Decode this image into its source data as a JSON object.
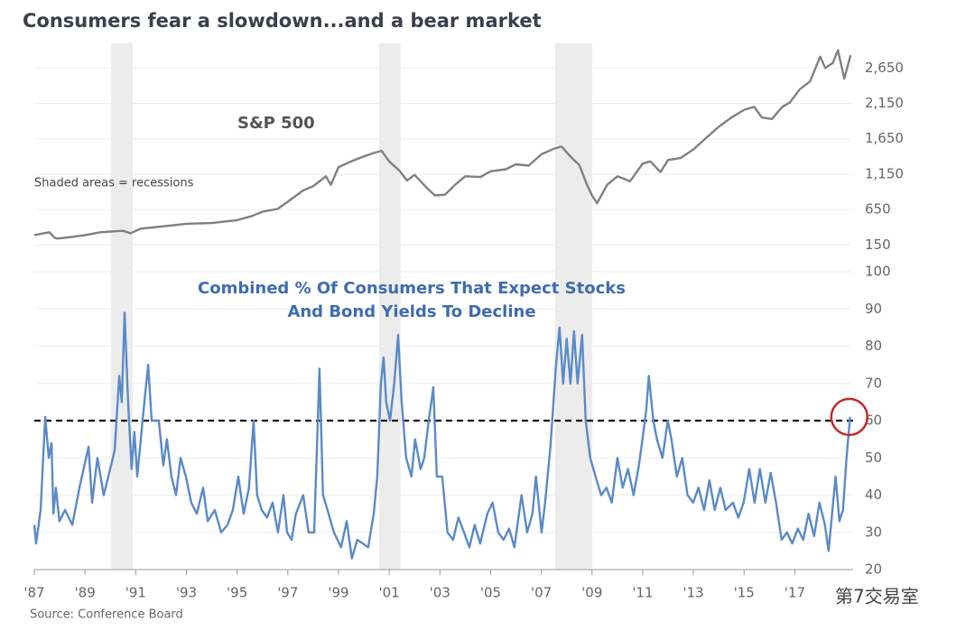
{
  "chart_data": [
    {
      "type": "line",
      "title": "Consumers fear a slowdown...and a bear market",
      "note": "Shaded areas = recessions",
      "xlim": [
        1987,
        2019.3
      ],
      "ylim": [
        -100,
        3100
      ],
      "yticks": [
        150,
        650,
        {
          "value": 1150,
          "label": "1,150"
        },
        {
          "value": 1650,
          "label": "1,650"
        },
        {
          "value": 2150,
          "label": "2,150"
        },
        {
          "value": 2650,
          "label": "2,650"
        }
      ],
      "grid": true,
      "series": [
        {
          "name": "S&P 500",
          "color": "#808080",
          "x": [
            1987.0,
            1987.3,
            1987.6,
            1987.8,
            1987.9,
            1988.5,
            1989.0,
            1989.6,
            1990.0,
            1990.5,
            1990.8,
            1991.2,
            1992.0,
            1993.0,
            1994.0,
            1995.0,
            1995.6,
            1996.0,
            1996.6,
            1997.0,
            1997.6,
            1998.0,
            1998.5,
            1998.7,
            1999.0,
            1999.5,
            2000.0,
            2000.4,
            2000.7,
            2001.0,
            2001.4,
            2001.7,
            2002.0,
            2002.5,
            2002.8,
            2003.2,
            2003.6,
            2004.0,
            2004.6,
            2005.0,
            2005.6,
            2006.0,
            2006.5,
            2007.0,
            2007.5,
            2007.8,
            2008.2,
            2008.5,
            2008.8,
            2009.0,
            2009.2,
            2009.6,
            2010.0,
            2010.5,
            2011.0,
            2011.3,
            2011.7,
            2012.0,
            2012.5,
            2013.0,
            2013.5,
            2014.0,
            2014.5,
            2015.0,
            2015.4,
            2015.7,
            2016.1,
            2016.5,
            2016.8,
            2017.2,
            2017.6,
            2018.0,
            2018.2,
            2018.5,
            2018.7,
            2018.95,
            2019.2
          ],
          "values": [
            290,
            310,
            330,
            250,
            240,
            265,
            290,
            330,
            340,
            350,
            315,
            380,
            410,
            450,
            460,
            500,
            560,
            620,
            660,
            760,
            920,
            980,
            1120,
            1000,
            1250,
            1330,
            1400,
            1450,
            1480,
            1330,
            1200,
            1060,
            1140,
            950,
            850,
            860,
            1000,
            1120,
            1110,
            1190,
            1220,
            1290,
            1270,
            1430,
            1510,
            1540,
            1380,
            1280,
            1000,
            850,
            740,
            1000,
            1120,
            1050,
            1300,
            1330,
            1180,
            1350,
            1380,
            1500,
            1660,
            1820,
            1950,
            2060,
            2100,
            1950,
            1930,
            2100,
            2160,
            2350,
            2460,
            2810,
            2650,
            2720,
            2900,
            2500,
            2830
          ]
        }
      ]
    },
    {
      "type": "line",
      "title": [
        "Combined % Of Consumers That Expect Stocks",
        "And Bond Yields To Decline"
      ],
      "xlim": [
        1987,
        2019.3
      ],
      "xticks": [
        {
          "value": 1987,
          "label": "'87"
        },
        {
          "value": 1989,
          "label": "'89"
        },
        {
          "value": 1991,
          "label": "'91"
        },
        {
          "value": 1993,
          "label": "'93"
        },
        {
          "value": 1995,
          "label": "'95"
        },
        {
          "value": 1997,
          "label": "'97"
        },
        {
          "value": 1999,
          "label": "'99"
        },
        {
          "value": 2001,
          "label": "'01"
        },
        {
          "value": 2003,
          "label": "'03"
        },
        {
          "value": 2005,
          "label": "'05"
        },
        {
          "value": 2007,
          "label": "'07"
        },
        {
          "value": 2009,
          "label": "'09"
        },
        {
          "value": 2011,
          "label": "'11"
        },
        {
          "value": 2013,
          "label": "'13"
        },
        {
          "value": 2015,
          "label": "'15"
        },
        {
          "value": 2017,
          "label": "'17"
        }
      ],
      "ylim": [
        20,
        100
      ],
      "yticks": [
        20,
        30,
        40,
        50,
        60,
        70,
        80,
        90,
        100
      ],
      "grid": true,
      "threshold": 60,
      "circle": {
        "x": 2019.15,
        "y": 61
      },
      "recessions": [
        [
          1990.03,
          1990.88
        ],
        [
          2000.6,
          2001.45
        ],
        [
          2007.54,
          2009.0
        ]
      ],
      "series": [
        {
          "color": "#5b8ac6",
          "x": [
            1987.0,
            1987.07,
            1987.25,
            1987.43,
            1987.57,
            1987.68,
            1987.75,
            1987.85,
            1987.99,
            1988.21,
            1988.5,
            1988.78,
            1989.14,
            1989.28,
            1989.49,
            1989.74,
            1989.92,
            1990.17,
            1990.35,
            1990.45,
            1990.56,
            1990.7,
            1990.84,
            1990.95,
            1991.06,
            1991.27,
            1991.49,
            1991.63,
            1991.91,
            1992.09,
            1992.23,
            1992.41,
            1992.59,
            1992.77,
            1992.98,
            1993.19,
            1993.41,
            1993.66,
            1993.84,
            1994.12,
            1994.37,
            1994.62,
            1994.83,
            1995.05,
            1995.26,
            1995.47,
            1995.65,
            1995.79,
            1995.97,
            1996.18,
            1996.4,
            1996.61,
            1996.83,
            1996.97,
            1997.15,
            1997.32,
            1997.61,
            1997.82,
            1998.04,
            1998.25,
            1998.39,
            1998.61,
            1998.82,
            1999.1,
            1999.32,
            1999.53,
            1999.74,
            1999.96,
            2000.17,
            2000.39,
            2000.53,
            2000.67,
            2000.78,
            2000.88,
            2001.03,
            2001.2,
            2001.35,
            2001.49,
            2001.67,
            2001.88,
            2002.02,
            2002.24,
            2002.38,
            2002.56,
            2002.74,
            2002.88,
            2003.09,
            2003.3,
            2003.52,
            2003.73,
            2003.95,
            2004.16,
            2004.37,
            2004.59,
            2004.87,
            2005.08,
            2005.3,
            2005.51,
            2005.73,
            2005.94,
            2006.22,
            2006.44,
            2006.65,
            2006.79,
            2007.01,
            2007.15,
            2007.36,
            2007.58,
            2007.72,
            2007.86,
            2008.0,
            2008.15,
            2008.29,
            2008.43,
            2008.61,
            2008.75,
            2008.93,
            2009.14,
            2009.36,
            2009.57,
            2009.78,
            2010.0,
            2010.21,
            2010.42,
            2010.64,
            2010.85,
            2010.99,
            2011.14,
            2011.24,
            2011.42,
            2011.56,
            2011.78,
            2011.99,
            2012.13,
            2012.35,
            2012.56,
            2012.77,
            2012.99,
            2013.2,
            2013.42,
            2013.63,
            2013.84,
            2014.06,
            2014.27,
            2014.56,
            2014.77,
            2014.98,
            2015.2,
            2015.41,
            2015.62,
            2015.84,
            2016.05,
            2016.26,
            2016.48,
            2016.69,
            2016.9,
            2017.12,
            2017.33,
            2017.54,
            2017.76,
            2017.97,
            2018.19,
            2018.33,
            2018.47,
            2018.61,
            2018.76,
            2018.9,
            2019.04,
            2019.18
          ],
          "values": [
            32,
            27,
            36,
            61,
            50,
            54,
            35,
            42,
            33,
            36,
            32,
            42,
            53,
            38,
            50,
            40,
            45,
            52,
            72,
            65,
            89,
            65,
            47,
            57,
            45,
            60,
            75,
            60,
            60,
            48,
            55,
            45,
            40,
            50,
            45,
            38,
            35,
            42,
            33,
            36,
            30,
            32,
            36,
            45,
            35,
            42,
            60,
            40,
            36,
            34,
            38,
            30,
            40,
            30,
            28,
            35,
            40,
            30,
            30,
            74,
            40,
            35,
            30,
            26,
            33,
            23,
            28,
            27,
            26,
            35,
            45,
            70,
            77,
            65,
            60,
            70,
            83,
            65,
            50,
            45,
            55,
            47,
            50,
            60,
            69,
            45,
            45,
            30,
            28,
            34,
            30,
            26,
            32,
            27,
            35,
            38,
            30,
            28,
            31,
            26,
            40,
            30,
            35,
            45,
            30,
            38,
            53,
            75,
            85,
            70,
            82,
            70,
            84,
            70,
            83,
            60,
            50,
            45,
            40,
            42,
            38,
            50,
            42,
            47,
            40,
            48,
            55,
            63,
            72,
            60,
            55,
            50,
            60,
            55,
            45,
            50,
            40,
            38,
            42,
            36,
            44,
            36,
            42,
            36,
            38,
            34,
            38,
            47,
            38,
            47,
            38,
            46,
            38,
            28,
            30,
            27,
            31,
            28,
            35,
            29,
            38,
            32,
            25,
            35,
            45,
            33,
            36,
            50,
            61
          ]
        }
      ]
    }
  ],
  "source": "Source: Conference Board",
  "watermark": "第7交易室"
}
